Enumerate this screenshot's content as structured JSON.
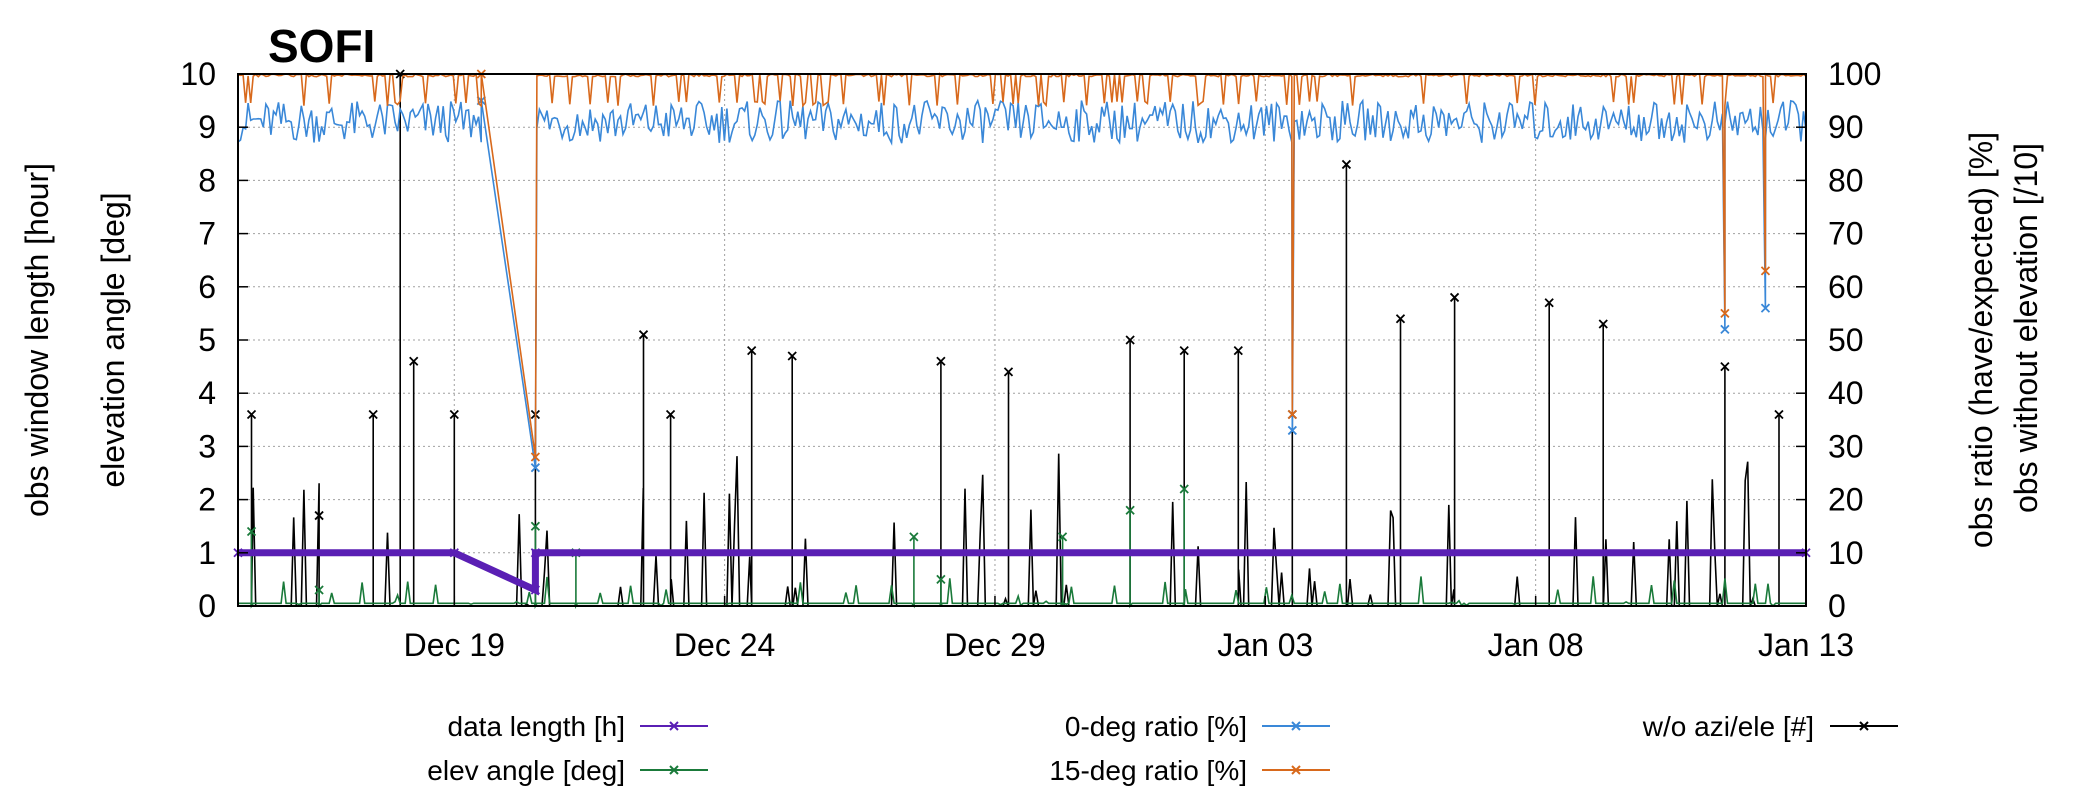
{
  "chart_data": {
    "type": "line",
    "title": "SOFI",
    "ylabel_left_outer": "obs window length [hour]",
    "ylabel_left_inner": "elevation angle [deg]",
    "ylabel_right_inner": "obs ratio (have/expected) [%]",
    "ylabel_right_outer": "obs without elevation [/10]",
    "x_range": [
      "2023-12-15",
      "2024-01-13"
    ],
    "x_ticks": [
      {
        "date": "2023-12-19",
        "label": "Dec 19"
      },
      {
        "date": "2023-12-24",
        "label": "Dec 24"
      },
      {
        "date": "2023-12-29",
        "label": "Dec 29"
      },
      {
        "date": "2024-01-03",
        "label": "Jan 03"
      },
      {
        "date": "2024-01-08",
        "label": "Jan 08"
      },
      {
        "date": "2024-01-13",
        "label": "Jan 13"
      }
    ],
    "y_left": {
      "min": 0,
      "max": 10,
      "ticks": [
        "0",
        "1",
        "2",
        "3",
        "4",
        "5",
        "6",
        "7",
        "8",
        "9",
        "10"
      ]
    },
    "y_right": {
      "min": 0,
      "max": 100,
      "ticks": [
        "0",
        "10",
        "20",
        "30",
        "40",
        "50",
        "60",
        "70",
        "80",
        "90",
        "100"
      ]
    },
    "grid": true,
    "legend_position": "bottom",
    "series": [
      {
        "name": "data length  [h]",
        "axis": "left",
        "color": "#5a1fb4",
        "mean": 1.0,
        "spread": 0.0,
        "points": [
          [
            "2023-12-15",
            1.0
          ],
          [
            "2023-12-19",
            1.0
          ],
          [
            "2023-12-20 12:00",
            0.3
          ],
          [
            "2023-12-20 12:00",
            1.0
          ],
          [
            "2024-01-13",
            1.0
          ]
        ]
      },
      {
        "name": "elev angle [deg]",
        "axis": "left",
        "color": "#1a7a3a",
        "mean": 0.05,
        "points": [
          [
            "2023-12-15 06:00",
            1.4
          ],
          [
            "2023-12-16 12:00",
            0.3
          ],
          [
            "2023-12-20 12:00",
            1.5
          ],
          [
            "2023-12-21 06:00",
            1.0
          ],
          [
            "2023-12-27 12:00",
            1.3
          ],
          [
            "2023-12-28",
            0.5
          ],
          [
            "2023-12-30 06:00",
            1.3
          ],
          [
            "2023-12-31 12:00",
            1.8
          ],
          [
            "2024-01-01 12:00",
            2.2
          ]
        ]
      },
      {
        "name": "0-deg ratio [%]",
        "axis": "right",
        "color": "#3a88d8",
        "mean": 91,
        "spread": 4,
        "points": [
          [
            "2023-12-19 12:00",
            95
          ],
          [
            "2023-12-20 12:00",
            26
          ],
          [
            "2024-01-03 12:00",
            33
          ],
          [
            "2024-01-11 12:00",
            52
          ],
          [
            "2024-01-12 06:00",
            56
          ]
        ]
      },
      {
        "name": "15-deg ratio [%]",
        "axis": "right",
        "color": "#d8691c",
        "mean": 99.3,
        "spread": 1,
        "points": [
          [
            "2023-12-19 12:00",
            100
          ],
          [
            "2023-12-20 12:00",
            28
          ],
          [
            "2024-01-03 12:00",
            36
          ],
          [
            "2024-01-11 12:00",
            55
          ],
          [
            "2024-01-12 06:00",
            63
          ]
        ]
      },
      {
        "name": "w/o azi/ele [#]",
        "axis": "left",
        "color": "#000000",
        "mean": 0.0,
        "points": [
          [
            "2023-12-15 06:00",
            3.6
          ],
          [
            "2023-12-16 12:00",
            1.7
          ],
          [
            "2023-12-17 12:00",
            3.6
          ],
          [
            "2023-12-18",
            10.0
          ],
          [
            "2023-12-18 06:00",
            4.6
          ],
          [
            "2023-12-19",
            3.6
          ],
          [
            "2023-12-20 12:00",
            3.6
          ],
          [
            "2023-12-22 12:00",
            5.1
          ],
          [
            "2023-12-23",
            3.6
          ],
          [
            "2023-12-24 12:00",
            4.8
          ],
          [
            "2023-12-25 06:00",
            4.7
          ],
          [
            "2023-12-28",
            4.6
          ],
          [
            "2023-12-29 06:00",
            4.4
          ],
          [
            "2023-12-31 12:00",
            5.0
          ],
          [
            "2024-01-01 12:00",
            4.8
          ],
          [
            "2024-01-02 12:00",
            4.8
          ],
          [
            "2024-01-03 12:00",
            3.6
          ],
          [
            "2024-01-04 12:00",
            8.3
          ],
          [
            "2024-01-05 12:00",
            5.4
          ],
          [
            "2024-01-06 12:00",
            5.8
          ],
          [
            "2024-01-08 06:00",
            5.7
          ],
          [
            "2024-01-09 06:00",
            5.3
          ],
          [
            "2024-01-11 12:00",
            4.5
          ],
          [
            "2024-01-12 12:00",
            3.6
          ]
        ]
      }
    ]
  }
}
